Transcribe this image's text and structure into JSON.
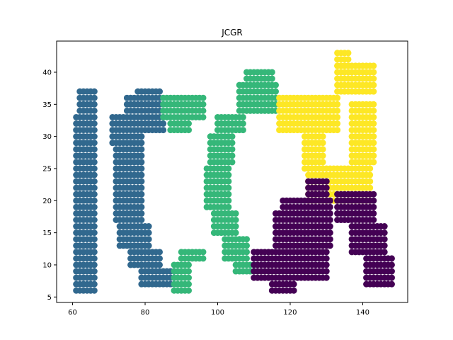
{
  "chart_data": {
    "type": "scatter",
    "title": "JCGR",
    "xlabel": "",
    "ylabel": "",
    "xlim": [
      55.6,
      152.4
    ],
    "ylim": [
      4.15,
      44.85
    ],
    "xticks": [
      60,
      80,
      100,
      120,
      140
    ],
    "yticks": [
      5,
      10,
      15,
      20,
      25,
      30,
      35,
      40
    ],
    "grid": false,
    "legend": "none",
    "colors": {
      "blue": "#31688e",
      "green": "#35b779",
      "yellow": "#fde725",
      "purple": "#440154"
    },
    "series": [
      {
        "color_key": "blue",
        "regions": [
          {
            "x": [
              61,
              66
            ],
            "y": [
              6,
              33
            ]
          },
          {
            "x": [
              62,
              66
            ],
            "y": [
              34,
              37
            ]
          },
          {
            "x": [
              71,
              79
            ],
            "y": [
              29,
              33
            ]
          },
          {
            "x": [
              72,
              79
            ],
            "y": [
              17,
              28
            ]
          },
          {
            "x": [
              73,
              81
            ],
            "y": [
              13,
              16
            ]
          },
          {
            "x": [
              76,
              84
            ],
            "y": [
              10,
              12
            ]
          },
          {
            "x": [
              79,
              88
            ],
            "y": [
              7,
              9
            ]
          },
          {
            "x": [
              75,
              84
            ],
            "y": [
              34,
              36
            ]
          },
          {
            "x": [
              78,
              84
            ],
            "y": [
              37,
              37
            ]
          },
          {
            "x": [
              80,
              85
            ],
            "y": [
              31,
              33
            ]
          }
        ]
      },
      {
        "color_key": "green",
        "regions": [
          {
            "x": [
              85,
              96
            ],
            "y": [
              33,
              36
            ]
          },
          {
            "x": [
              87,
              92
            ],
            "y": [
              31,
              32
            ]
          },
          {
            "x": [
              88,
              92
            ],
            "y": [
              6,
              10
            ]
          },
          {
            "x": [
              90,
              96
            ],
            "y": [
              11,
              12
            ]
          },
          {
            "x": [
              106,
              116
            ],
            "y": [
              34,
              38
            ]
          },
          {
            "x": [
              108,
              115
            ],
            "y": [
              39,
              40
            ]
          },
          {
            "x": [
              100,
              107
            ],
            "y": [
              31,
              33
            ]
          },
          {
            "x": [
              98,
              104
            ],
            "y": [
              26,
              30
            ]
          },
          {
            "x": [
              97,
              103
            ],
            "y": [
              19,
              25
            ]
          },
          {
            "x": [
              99,
              105
            ],
            "y": [
              15,
              18
            ]
          },
          {
            "x": [
              102,
              108
            ],
            "y": [
              11,
              14
            ]
          },
          {
            "x": [
              105,
              110
            ],
            "y": [
              9,
              10
            ]
          }
        ]
      },
      {
        "color_key": "yellow",
        "regions": [
          {
            "x": [
              117,
              133
            ],
            "y": [
              31,
              36
            ]
          },
          {
            "x": [
              124,
              129
            ],
            "y": [
              25,
              30
            ]
          },
          {
            "x": [
              125,
              142
            ],
            "y": [
              20,
              25
            ]
          },
          {
            "x": [
              133,
              143
            ],
            "y": [
              37,
              41
            ]
          },
          {
            "x": [
              133,
              136
            ],
            "y": [
              41,
              43
            ]
          },
          {
            "x": [
              137,
              143
            ],
            "y": [
              26,
              35
            ]
          }
        ]
      },
      {
        "color_key": "purple",
        "regions": [
          {
            "x": [
              110,
              130
            ],
            "y": [
              8,
              12
            ]
          },
          {
            "x": [
              116,
              131
            ],
            "y": [
              13,
              18
            ]
          },
          {
            "x": [
              118,
              131
            ],
            "y": [
              19,
              20
            ]
          },
          {
            "x": [
              125,
              130
            ],
            "y": [
              21,
              23
            ]
          },
          {
            "x": [
              115,
              121
            ],
            "y": [
              6,
              7
            ]
          },
          {
            "x": [
              133,
              143
            ],
            "y": [
              17,
              21
            ]
          },
          {
            "x": [
              137,
              146
            ],
            "y": [
              12,
              16
            ]
          },
          {
            "x": [
              141,
              148
            ],
            "y": [
              7,
              11
            ]
          }
        ]
      }
    ]
  }
}
